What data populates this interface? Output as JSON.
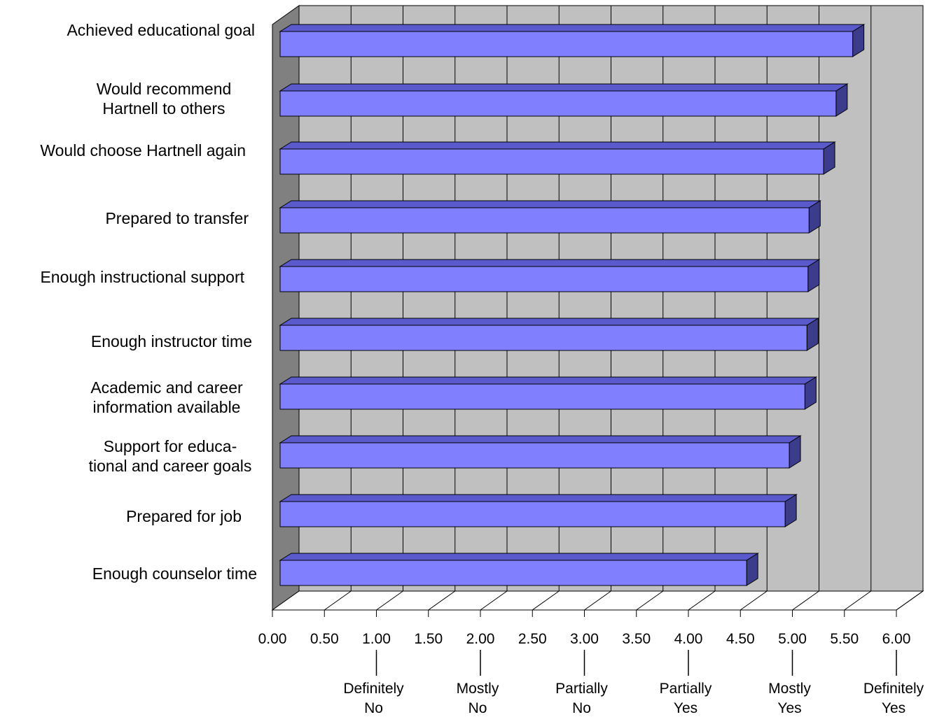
{
  "chart_data": {
    "type": "bar",
    "orientation": "horizontal",
    "style": "3d",
    "categories": [
      [
        "Achieved educational goal"
      ],
      [
        "Would recommend",
        "Hartnell to others"
      ],
      [
        "Would choose Hartnell again"
      ],
      [
        "Prepared to transfer"
      ],
      [
        "Enough instructional support"
      ],
      [
        "Enough instructor time"
      ],
      [
        "Academic and career",
        "information available"
      ],
      [
        "Support for educa-",
        "tional and career goals"
      ],
      [
        "Prepared for job"
      ],
      [
        "Enough counselor time"
      ]
    ],
    "values": [
      5.58,
      5.42,
      5.3,
      5.16,
      5.15,
      5.14,
      5.12,
      4.97,
      4.93,
      4.56
    ],
    "xlim": [
      0,
      6
    ],
    "x_ticks": [
      "0.00",
      "0.50",
      "1.00",
      "1.50",
      "2.00",
      "2.50",
      "3.00",
      "3.50",
      "4.00",
      "4.50",
      "5.00",
      "5.50",
      "6.00"
    ],
    "scale_labels": [
      {
        "value": 1,
        "lines": [
          "Definitely",
          "No"
        ]
      },
      {
        "value": 2,
        "lines": [
          "Mostly",
          "No"
        ]
      },
      {
        "value": 3,
        "lines": [
          "Partially",
          "No"
        ]
      },
      {
        "value": 4,
        "lines": [
          "Partially",
          "Yes"
        ]
      },
      {
        "value": 5,
        "lines": [
          "Mostly",
          "Yes"
        ]
      },
      {
        "value": 6,
        "lines": [
          "Definitely",
          "Yes"
        ]
      }
    ],
    "grid": true,
    "colors": {
      "bar_front": "#8080ff",
      "bar_top": "#5a5acc",
      "bar_side": "#3c3c8c",
      "wall": "#c0c0c0",
      "side_wall": "#808080",
      "floor": "#ffffff"
    }
  }
}
